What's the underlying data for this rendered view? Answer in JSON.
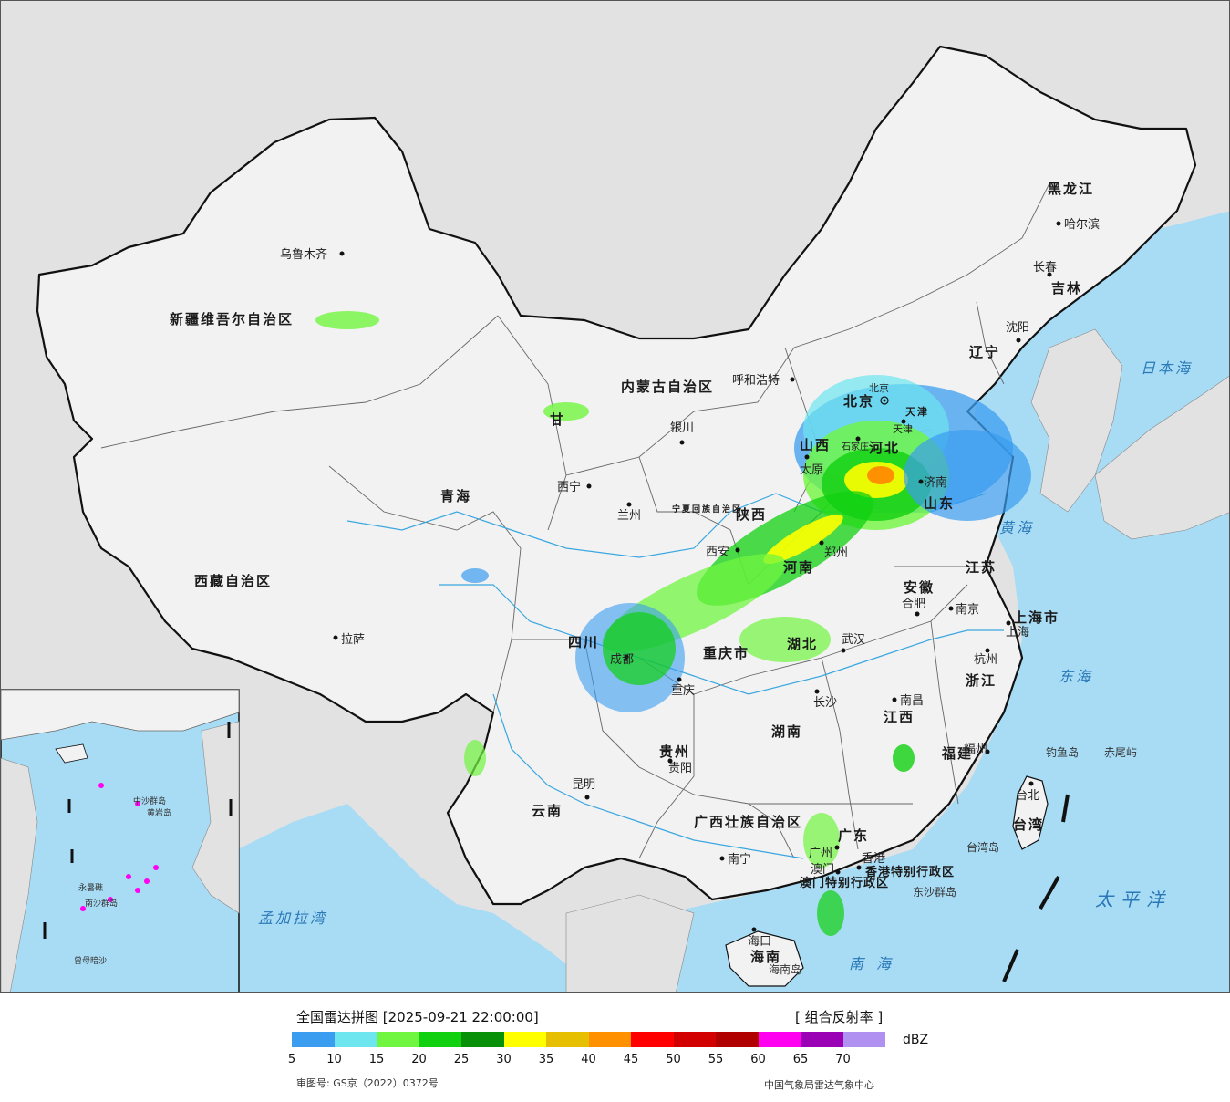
{
  "map": {
    "provinces": [
      {
        "name": "新疆维吾尔自治区"
      },
      {
        "name": "西藏自治区"
      },
      {
        "name": "青海"
      },
      {
        "name": "甘"
      },
      {
        "name": "内蒙古自治区"
      },
      {
        "name": "黑龙江"
      },
      {
        "name": "吉林"
      },
      {
        "name": "辽宁"
      },
      {
        "name": "四川"
      },
      {
        "name": "云南"
      },
      {
        "name": "贵州"
      },
      {
        "name": "重庆市"
      },
      {
        "name": "陕西"
      },
      {
        "name": "山西"
      },
      {
        "name": "河南"
      },
      {
        "name": "河北"
      },
      {
        "name": "山东"
      },
      {
        "name": "湖北"
      },
      {
        "name": "湖南"
      },
      {
        "name": "江西"
      },
      {
        "name": "安徽"
      },
      {
        "name": "江苏"
      },
      {
        "name": "浙江"
      },
      {
        "name": "福建"
      },
      {
        "name": "广东"
      },
      {
        "name": "广西壮族自治区"
      },
      {
        "name": "海南"
      },
      {
        "name": "台湾"
      },
      {
        "name": "上海市"
      },
      {
        "name": "宁夏回族自治区"
      },
      {
        "name": "天津"
      },
      {
        "name": "北京"
      },
      {
        "name": "香港特别行政区"
      },
      {
        "name": "澳门特别行政区"
      }
    ],
    "cities": [
      {
        "name": "乌鲁木齐"
      },
      {
        "name": "拉萨"
      },
      {
        "name": "西宁"
      },
      {
        "name": "兰州"
      },
      {
        "name": "银川"
      },
      {
        "name": "呼和浩特"
      },
      {
        "name": "哈尔滨"
      },
      {
        "name": "长春"
      },
      {
        "name": "沈阳"
      },
      {
        "name": "北京"
      },
      {
        "name": "天津"
      },
      {
        "name": "石家庄"
      },
      {
        "name": "太原"
      },
      {
        "name": "济南"
      },
      {
        "name": "郑州"
      },
      {
        "name": "西安"
      },
      {
        "name": "成都"
      },
      {
        "name": "重庆"
      },
      {
        "name": "贵阳"
      },
      {
        "name": "昆明"
      },
      {
        "name": "南宁"
      },
      {
        "name": "广州"
      },
      {
        "name": "香港"
      },
      {
        "name": "澳门"
      },
      {
        "name": "海口"
      },
      {
        "name": "长沙"
      },
      {
        "name": "武汉"
      },
      {
        "name": "南昌"
      },
      {
        "name": "合肥"
      },
      {
        "name": "南京"
      },
      {
        "name": "上海"
      },
      {
        "name": "杭州"
      },
      {
        "name": "福州"
      },
      {
        "name": "台北"
      }
    ],
    "seas": [
      {
        "name": "日本海"
      },
      {
        "name": "黄海"
      },
      {
        "name": "东海"
      },
      {
        "name": "太平洋"
      },
      {
        "name": "南海"
      },
      {
        "name": "孟加拉湾"
      }
    ],
    "islands": [
      {
        "name": "钓鱼岛"
      },
      {
        "name": "赤尾屿"
      },
      {
        "name": "台湾岛"
      },
      {
        "name": "东沙群岛"
      },
      {
        "name": "海南岛"
      },
      {
        "name": "中沙群岛"
      },
      {
        "name": "南沙群岛"
      },
      {
        "name": "曾母暗沙"
      },
      {
        "name": "黄岩岛"
      },
      {
        "name": "永暑礁"
      }
    ]
  },
  "legend": {
    "title": "全国雷达拼图 [2025-09-21 22:00:00]",
    "product": "[ 组合反射率 ]",
    "unit": "dBZ",
    "bins": [
      {
        "color": "#3b9df0"
      },
      {
        "color": "#6ee6f0"
      },
      {
        "color": "#70f540"
      },
      {
        "color": "#10d010"
      },
      {
        "color": "#089008"
      },
      {
        "color": "#ffff00"
      },
      {
        "color": "#e6c000"
      },
      {
        "color": "#ff9000"
      },
      {
        "color": "#ff0000"
      },
      {
        "color": "#d20000"
      },
      {
        "color": "#b00000"
      },
      {
        "color": "#ff00f0"
      },
      {
        "color": "#9a00b4"
      },
      {
        "color": "#b090f0"
      }
    ],
    "ticks": [
      "5",
      "10",
      "15",
      "20",
      "25",
      "30",
      "35",
      "40",
      "45",
      "50",
      "55",
      "60",
      "65",
      "70"
    ],
    "approval": "审图号: GS京（2022）0372号",
    "source": "中国气象局雷达气象中心"
  },
  "colors": {
    "sea": "#a8dcf5",
    "land": "#f2f2f2",
    "outside": "#e2e2e2",
    "border": "#111111",
    "river": "#3aa7e0"
  }
}
